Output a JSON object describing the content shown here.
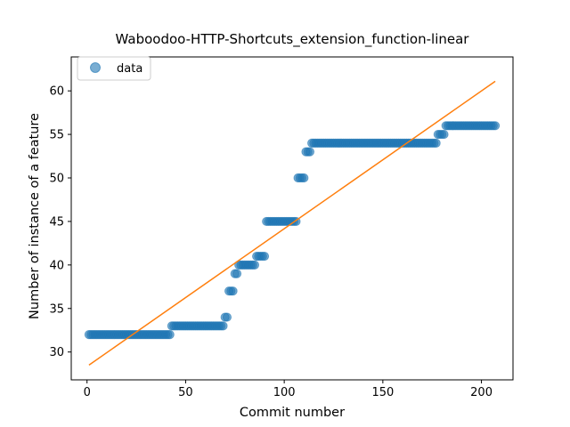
{
  "chart_data": {
    "type": "scatter",
    "title": "Waboodoo-HTTP-Shortcuts_extension_function-linear",
    "xlabel": "Commit number",
    "ylabel": "Number of instance of a feature",
    "xlim": [
      -8,
      216
    ],
    "ylim": [
      26.8,
      63.9
    ],
    "xticks": [
      0,
      50,
      100,
      150,
      200
    ],
    "yticks": [
      30,
      35,
      40,
      45,
      50,
      55,
      60
    ],
    "legend": {
      "placement": "top-left",
      "entries": [
        "data"
      ]
    },
    "grid": false,
    "series": [
      {
        "name": "data",
        "kind": "scatter",
        "color": "#1f77b4",
        "runs": [
          {
            "x_start": 1,
            "x_end": 42,
            "y": 32
          },
          {
            "x_start": 43,
            "x_end": 69,
            "y": 33
          },
          {
            "x_start": 70,
            "x_end": 71,
            "y": 34
          },
          {
            "x_start": 72,
            "x_end": 74,
            "y": 37
          },
          {
            "x_start": 75,
            "x_end": 76,
            "y": 39
          },
          {
            "x_start": 77,
            "x_end": 85,
            "y": 40
          },
          {
            "x_start": 86,
            "x_end": 90,
            "y": 41
          },
          {
            "x_start": 91,
            "x_end": 106,
            "y": 45
          },
          {
            "x_start": 107,
            "x_end": 110,
            "y": 50
          },
          {
            "x_start": 111,
            "x_end": 113,
            "y": 53
          },
          {
            "x_start": 114,
            "x_end": 177,
            "y": 54
          },
          {
            "x_start": 178,
            "x_end": 181,
            "y": 55
          },
          {
            "x_start": 182,
            "x_end": 207,
            "y": 56
          }
        ]
      },
      {
        "kind": "line",
        "color": "#ff7f0e",
        "points": [
          {
            "x": 1,
            "y": 28.5
          },
          {
            "x": 207,
            "y": 61.1
          }
        ]
      }
    ]
  }
}
